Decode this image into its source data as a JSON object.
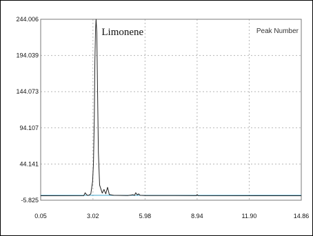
{
  "chart_data": {
    "type": "line",
    "title": "",
    "xlabel": "",
    "ylabel": "",
    "xlim": [
      0.05,
      14.86
    ],
    "ylim": [
      -5.825,
      244.006
    ],
    "xticks": [
      "0.05",
      "3.02",
      "5.98",
      "8.94",
      "11.90",
      "14.86"
    ],
    "yticks": [
      "244.006",
      "194.039",
      "144.073",
      "94.107",
      "44.141",
      "-5.825"
    ],
    "grid": true,
    "legend": "none",
    "annotations": [
      {
        "text": "Limonene",
        "x": 3.2,
        "y": 244.006
      },
      {
        "text": "Peak Number",
        "position": "top-right"
      }
    ],
    "series": [
      {
        "color": "#222222",
        "x": [
          0.05,
          2.5,
          2.58,
          2.65,
          2.72,
          2.8,
          2.9,
          3.0,
          3.05,
          3.1,
          3.13,
          3.17,
          3.2,
          3.24,
          3.28,
          3.33,
          3.4,
          3.55,
          3.65,
          3.75,
          3.85,
          3.95,
          4.2,
          5.0,
          5.3,
          5.38,
          5.45,
          5.55,
          5.62,
          5.7,
          6.0,
          8.9,
          8.94,
          9.0,
          14.86
        ],
        "y": [
          0.3,
          0.5,
          4.5,
          2.0,
          0.8,
          1.2,
          3.0,
          20.0,
          45.0,
          110.0,
          185.0,
          230.0,
          244.0,
          225.0,
          150.0,
          60.0,
          15.0,
          4.0,
          9.0,
          3.0,
          12.0,
          2.0,
          1.0,
          0.6,
          1.8,
          0.8,
          4.5,
          1.5,
          3.0,
          0.9,
          0.6,
          0.5,
          2.0,
          0.5,
          0.3
        ]
      },
      {
        "color": "#3aa0c8",
        "x": [
          0.05,
          14.86
        ],
        "y": [
          0.9,
          0.9
        ]
      }
    ]
  }
}
